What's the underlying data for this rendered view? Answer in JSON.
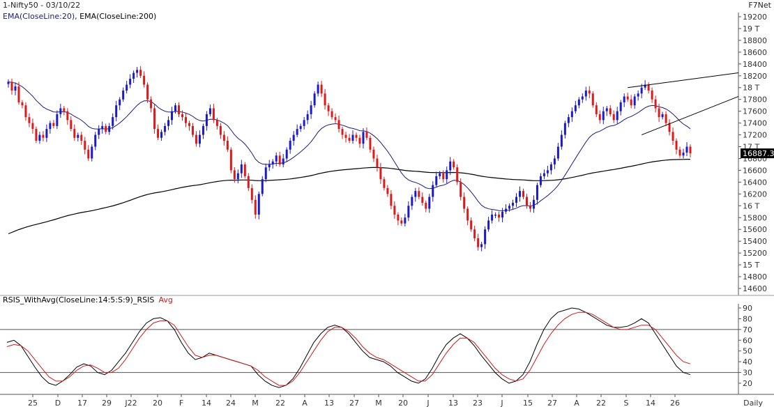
{
  "header": {
    "title": "1-Nifty50 - 03/10/22",
    "indicators_ema20": "EMA(CloseLine:20)",
    "indicators_ema200": "EMA(CloseLine:200)",
    "brand": "F7Net"
  },
  "price_panel": {
    "current_price_label": "16887.3",
    "y_ticks": [
      "19200",
      "19 T",
      "18800",
      "18600",
      "18400",
      "18200",
      "18 T",
      "17800",
      "17600",
      "17400",
      "17200",
      "17 T",
      "16800",
      "16600",
      "16400",
      "16200",
      "16 T",
      "15800",
      "15600",
      "15400",
      "15200",
      "15 T",
      "14800",
      "14600"
    ]
  },
  "rsi_panel": {
    "title_main": "RSIS_WithAvg(CloseLine:14:5:S:9)_RSIS",
    "title_avg": "Avg",
    "y_ticks": [
      "90",
      "80",
      "70",
      "60",
      "50",
      "40",
      "30",
      "20"
    ]
  },
  "x_axis": {
    "labels": [
      "25",
      "D",
      "17",
      "29",
      "J22",
      "20",
      "F",
      "14",
      "24",
      "M",
      "22",
      "A",
      "13",
      "27",
      "M",
      "20",
      "J",
      "13",
      "23",
      "J",
      "15",
      "27",
      "A",
      "22",
      "S",
      "14",
      "26"
    ],
    "period": "Daily"
  },
  "colors": {
    "up_candle": "#1a1acc",
    "down_candle": "#dd1a1a",
    "ema20": "#1a1a80",
    "ema200": "#000000",
    "rsi": "#000000",
    "rsi_avg": "#cc1a1a",
    "grid_line": "#555555",
    "background": "#ffffff"
  },
  "chart_data": [
    {
      "type": "candlestick",
      "title": "1-Nifty50 - 03/10/22",
      "ylim": [
        14500,
        19300
      ],
      "series": [
        {
          "name": "Nifty50",
          "close": [
            18100,
            17950,
            18020,
            17750,
            17700,
            17500,
            17400,
            17300,
            17100,
            17200,
            17150,
            17300,
            17400,
            17350,
            17550,
            17650,
            17600,
            17450,
            17300,
            17150,
            17200,
            17100,
            16950,
            16800,
            17000,
            17200,
            17300,
            17350,
            17250,
            17350,
            17500,
            17700,
            17800,
            17950,
            18050,
            18150,
            18250,
            18300,
            18200,
            18050,
            17800,
            17650,
            17300,
            17150,
            17250,
            17350,
            17450,
            17600,
            17700,
            17550,
            17500,
            17400,
            17350,
            17200,
            17050,
            17200,
            17350,
            17550,
            17650,
            17450,
            17350,
            17200,
            17100,
            16950,
            16600,
            16450,
            16550,
            16700,
            16500,
            16300,
            16100,
            15850,
            16200,
            16450,
            16650,
            16700,
            16750,
            16850,
            16700,
            16800,
            16950,
            17100,
            17200,
            17300,
            17350,
            17450,
            17550,
            17700,
            17900,
            18050,
            17900,
            17700,
            17600,
            17500,
            17450,
            17300,
            17200,
            17150,
            17100,
            17200,
            17150,
            17050,
            17250,
            17150,
            16950,
            16800,
            16650,
            16450,
            16300,
            16200,
            16000,
            15850,
            15750,
            15700,
            15800,
            16000,
            16150,
            16250,
            16150,
            16050,
            15950,
            16150,
            16350,
            16500,
            16550,
            16450,
            16600,
            16750,
            16650,
            16400,
            16150,
            15950,
            15750,
            15600,
            15450,
            15300,
            15350,
            15600,
            15750,
            15850,
            15850,
            15800,
            15900,
            15950,
            16000,
            16050,
            16150,
            16250,
            16150,
            16000,
            15950,
            16100,
            16350,
            16500,
            16550,
            16600,
            16700,
            16800,
            17000,
            17200,
            17400,
            17500,
            17600,
            17700,
            17800,
            17850,
            17950,
            17900,
            17700,
            17550,
            17450,
            17600,
            17650,
            17550,
            17450,
            17600,
            17750,
            17850,
            17800,
            17700,
            17850,
            17900,
            18000,
            18050,
            17950,
            17800,
            17650,
            17500,
            17550,
            17400,
            17250,
            17100,
            16950,
            16850,
            16900,
            17000,
            16887.3
          ]
        }
      ],
      "overlays": [
        {
          "name": "EMA(CloseLine:20)",
          "period": 20
        },
        {
          "name": "EMA(CloseLine:200)",
          "period": 200
        }
      ]
    },
    {
      "type": "line",
      "title": "RSIS_WithAvg(CloseLine:14:5:S:9)_RSIS",
      "ylim": [
        15,
        95
      ],
      "grid_lines": [
        70,
        30
      ],
      "series": [
        {
          "name": "RSIS",
          "values": [
            58,
            60,
            55,
            45,
            35,
            26,
            20,
            18,
            22,
            28,
            35,
            38,
            36,
            30,
            28,
            32,
            40,
            48,
            58,
            68,
            76,
            80,
            81,
            78,
            70,
            58,
            48,
            42,
            44,
            48,
            46,
            44,
            42,
            40,
            38,
            36,
            28,
            22,
            18,
            16,
            18,
            24,
            34,
            46,
            58,
            66,
            72,
            74,
            72,
            66,
            58,
            50,
            44,
            42,
            40,
            36,
            30,
            26,
            22,
            20,
            24,
            34,
            46,
            56,
            62,
            66,
            62,
            55,
            46,
            38,
            30,
            24,
            20,
            22,
            28,
            40,
            56,
            70,
            80,
            86,
            88,
            90,
            89,
            86,
            82,
            78,
            74,
            72,
            72,
            73,
            76,
            80,
            76,
            66,
            56,
            46,
            36,
            30,
            28
          ]
        },
        {
          "name": "Avg",
          "values": [
            54,
            56,
            55,
            50,
            42,
            34,
            26,
            22,
            22,
            26,
            32,
            36,
            37,
            34,
            30,
            30,
            34,
            42,
            52,
            62,
            70,
            76,
            78,
            78,
            74,
            64,
            54,
            46,
            44,
            46,
            46,
            44,
            42,
            40,
            38,
            36,
            32,
            26,
            22,
            18,
            18,
            22,
            30,
            40,
            50,
            60,
            68,
            72,
            72,
            68,
            62,
            54,
            48,
            44,
            42,
            38,
            34,
            30,
            26,
            22,
            22,
            28,
            38,
            48,
            56,
            62,
            62,
            58,
            50,
            42,
            34,
            28,
            24,
            22,
            24,
            32,
            44,
            56,
            66,
            74,
            80,
            84,
            86,
            86,
            84,
            80,
            76,
            72,
            70,
            70,
            72,
            74,
            74,
            70,
            62,
            54,
            46,
            40,
            38
          ]
        }
      ]
    }
  ]
}
